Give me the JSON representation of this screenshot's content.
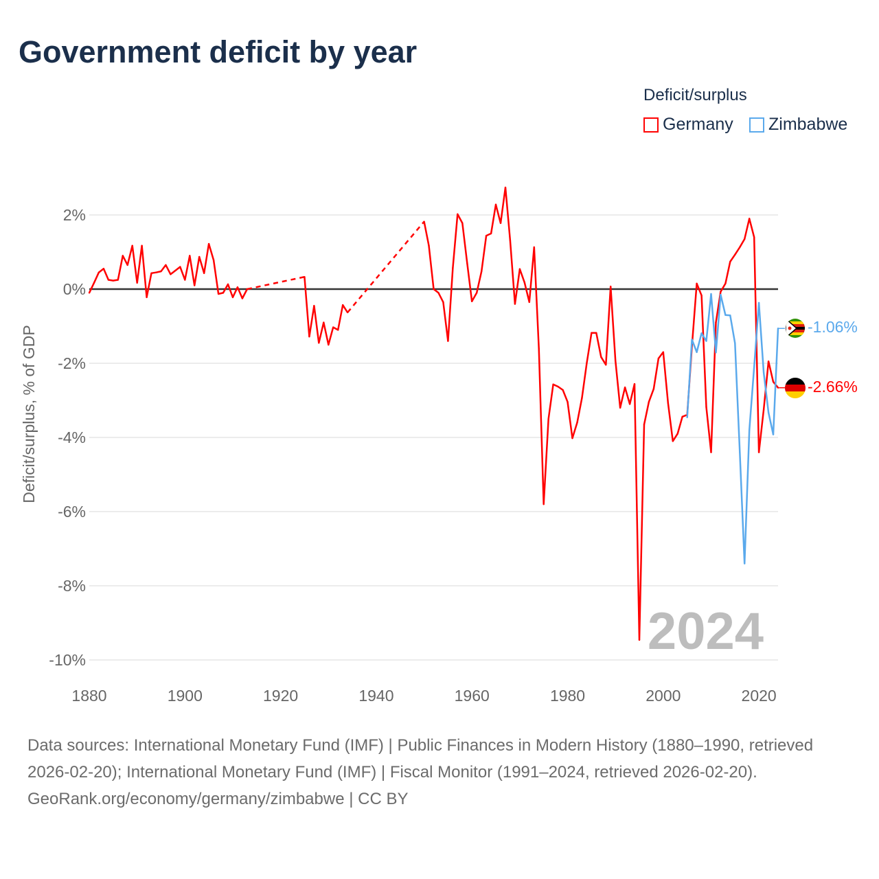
{
  "title": "Government deficit by year",
  "legend": {
    "title": "Deficit/surplus",
    "items": [
      {
        "name": "Germany",
        "color": "#ff0000"
      },
      {
        "name": "Zimbabwe",
        "color": "#5aa9ec"
      }
    ]
  },
  "footer": {
    "sources": "Data sources: International Monetary Fund (IMF) | Public Finances in Modern History (1880–1990, retrieved 2026-02-20); International Monetary Fund (IMF) | Fiscal Monitor (1991–2024, retrieved 2026-02-20).",
    "credit": "GeoRank.org/economy/germany/zimbabwe | CC BY"
  },
  "chart_data": {
    "type": "line",
    "title": "Government deficit by year",
    "ylabel": "Deficit/surplus, % of GDP",
    "xlabel": "",
    "xlim": [
      1880,
      2024
    ],
    "ylim": [
      -10,
      2
    ],
    "x_ticks": [
      1880,
      1900,
      1920,
      1940,
      1960,
      1980,
      2000,
      2020
    ],
    "y_ticks": [
      {
        "v": 2,
        "label": "2%"
      },
      {
        "v": 0,
        "label": "0%"
      },
      {
        "v": -2,
        "label": "-2%"
      },
      {
        "v": -4,
        "label": "-4%"
      },
      {
        "v": -6,
        "label": "-6%"
      },
      {
        "v": -8,
        "label": "-8%"
      },
      {
        "v": -10,
        "label": "-10%"
      }
    ],
    "grid": true,
    "legend_position": "top-right",
    "year_watermark": "2024",
    "series": [
      {
        "name": "Germany",
        "color": "#ff0000",
        "end_label": "-2.66%",
        "points": [
          [
            1880,
            -0.1
          ],
          [
            1881,
            0.17
          ],
          [
            1882,
            0.45
          ],
          [
            1883,
            0.55
          ],
          [
            1884,
            0.25
          ],
          [
            1885,
            0.23
          ],
          [
            1886,
            0.25
          ],
          [
            1887,
            0.9
          ],
          [
            1888,
            0.65
          ],
          [
            1889,
            1.17
          ],
          [
            1890,
            0.17
          ],
          [
            1891,
            1.17
          ],
          [
            1892,
            -0.22
          ],
          [
            1893,
            0.43
          ],
          [
            1894,
            0.45
          ],
          [
            1895,
            0.48
          ],
          [
            1896,
            0.65
          ],
          [
            1897,
            0.4
          ],
          [
            1898,
            0.5
          ],
          [
            1899,
            0.6
          ],
          [
            1900,
            0.25
          ],
          [
            1901,
            0.9
          ],
          [
            1902,
            0.1
          ],
          [
            1903,
            0.87
          ],
          [
            1904,
            0.43
          ],
          [
            1905,
            1.22
          ],
          [
            1906,
            0.78
          ],
          [
            1907,
            -0.13
          ],
          [
            1908,
            -0.1
          ],
          [
            1909,
            0.13
          ],
          [
            1910,
            -0.22
          ],
          [
            1911,
            0.05
          ],
          [
            1912,
            -0.25
          ],
          [
            1913,
            0.0
          ],
          [
            1925,
            0.33
          ],
          [
            1926,
            -1.28
          ],
          [
            1927,
            -0.45
          ],
          [
            1928,
            -1.45
          ],
          [
            1929,
            -0.9
          ],
          [
            1930,
            -1.5
          ],
          [
            1931,
            -1.03
          ],
          [
            1932,
            -1.1
          ],
          [
            1933,
            -0.43
          ],
          [
            1934,
            -0.63
          ],
          [
            1950,
            1.82
          ],
          [
            1951,
            1.17
          ],
          [
            1952,
            0.0
          ],
          [
            1953,
            -0.1
          ],
          [
            1954,
            -0.35
          ],
          [
            1955,
            -1.4
          ],
          [
            1956,
            0.57
          ],
          [
            1957,
            2.02
          ],
          [
            1958,
            1.78
          ],
          [
            1959,
            0.7
          ],
          [
            1960,
            -0.33
          ],
          [
            1961,
            -0.1
          ],
          [
            1962,
            0.48
          ],
          [
            1963,
            1.44
          ],
          [
            1964,
            1.5
          ],
          [
            1965,
            2.28
          ],
          [
            1966,
            1.78
          ],
          [
            1967,
            2.74
          ],
          [
            1968,
            1.31
          ],
          [
            1969,
            -0.4
          ],
          [
            1970,
            0.54
          ],
          [
            1971,
            0.18
          ],
          [
            1972,
            -0.35
          ],
          [
            1973,
            1.13
          ],
          [
            1974,
            -1.6
          ],
          [
            1975,
            -5.8
          ],
          [
            1976,
            -3.5
          ],
          [
            1977,
            -2.57
          ],
          [
            1978,
            -2.63
          ],
          [
            1979,
            -2.72
          ],
          [
            1980,
            -3.04
          ],
          [
            1981,
            -4.02
          ],
          [
            1982,
            -3.6
          ],
          [
            1983,
            -2.94
          ],
          [
            1984,
            -2.0
          ],
          [
            1985,
            -1.18
          ],
          [
            1986,
            -1.18
          ],
          [
            1987,
            -1.83
          ],
          [
            1988,
            -2.04
          ],
          [
            1989,
            0.07
          ],
          [
            1990,
            -1.93
          ],
          [
            1991,
            -3.2
          ],
          [
            1992,
            -2.65
          ],
          [
            1993,
            -3.1
          ],
          [
            1994,
            -2.56
          ],
          [
            1995,
            -9.46
          ],
          [
            1996,
            -3.65
          ],
          [
            1997,
            -3.04
          ],
          [
            1998,
            -2.69
          ],
          [
            1999,
            -1.87
          ],
          [
            2000,
            -1.7
          ],
          [
            2001,
            -3.07
          ],
          [
            2002,
            -4.1
          ],
          [
            2003,
            -3.9
          ],
          [
            2004,
            -3.44
          ],
          [
            2005,
            -3.39
          ],
          [
            2006,
            -1.54
          ],
          [
            2007,
            0.15
          ],
          [
            2008,
            -0.17
          ],
          [
            2009,
            -3.18
          ],
          [
            2010,
            -4.4
          ],
          [
            2011,
            -0.9
          ],
          [
            2012,
            -0.07
          ],
          [
            2013,
            0.15
          ],
          [
            2014,
            0.74
          ],
          [
            2015,
            0.93
          ],
          [
            2016,
            1.13
          ],
          [
            2017,
            1.35
          ],
          [
            2018,
            1.9
          ],
          [
            2019,
            1.4
          ],
          [
            2020,
            -4.4
          ],
          [
            2021,
            -3.25
          ],
          [
            2022,
            -1.95
          ],
          [
            2023,
            -2.5
          ],
          [
            2024,
            -2.66
          ]
        ]
      },
      {
        "name": "Zimbabwe",
        "color": "#5aa9ec",
        "end_label": "-1.06%",
        "points": [
          [
            2005,
            -3.46
          ],
          [
            2006,
            -1.36
          ],
          [
            2007,
            -1.7
          ],
          [
            2008,
            -1.19
          ],
          [
            2009,
            -1.4
          ],
          [
            2010,
            -0.13
          ],
          [
            2011,
            -1.71
          ],
          [
            2012,
            -0.15
          ],
          [
            2013,
            -0.7
          ],
          [
            2014,
            -0.71
          ],
          [
            2015,
            -1.46
          ],
          [
            2016,
            -4.4
          ],
          [
            2017,
            -7.4
          ],
          [
            2018,
            -3.8
          ],
          [
            2019,
            -2.1
          ],
          [
            2020,
            -0.37
          ],
          [
            2021,
            -2.25
          ],
          [
            2022,
            -3.33
          ],
          [
            2023,
            -3.92
          ],
          [
            2024,
            -1.06
          ]
        ]
      }
    ]
  }
}
